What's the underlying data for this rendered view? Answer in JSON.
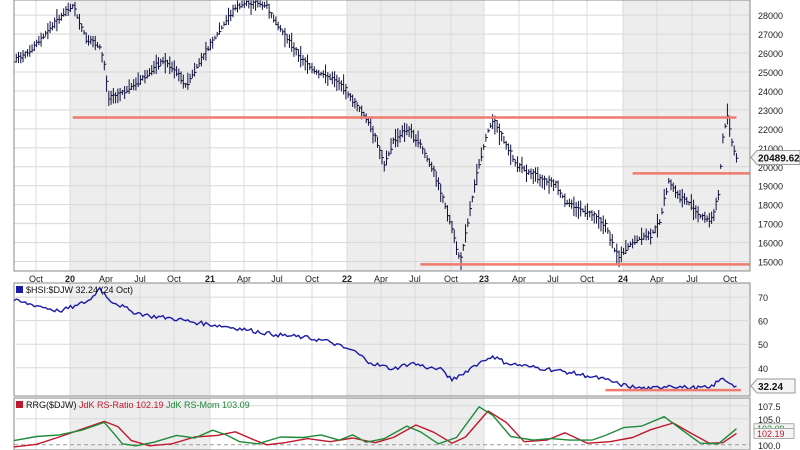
{
  "chart_data": [
    {
      "type": "ohlc",
      "title": "",
      "x_tick_labels": [
        "Oct",
        "20",
        "Apr",
        "Jul",
        "Oct",
        "21",
        "Apr",
        "Jul",
        "Oct",
        "22",
        "Apr",
        "Jul",
        "Oct",
        "23",
        "Apr",
        "Jul",
        "Oct",
        "24",
        "Apr",
        "Jul",
        "Oct"
      ],
      "year_labels": [
        "20",
        "21",
        "22",
        "23",
        "24"
      ],
      "y_tick_labels": [
        "28000",
        "27000",
        "26000",
        "25000",
        "24000",
        "23000",
        "22000",
        "21000",
        "20000",
        "19000",
        "18000",
        "17000",
        "16000",
        "15000"
      ],
      "ylim": [
        14500,
        28800
      ],
      "last_value_label": "20489.62",
      "close_path": [
        [
          0,
          25600
        ],
        [
          4,
          26200
        ],
        [
          9,
          27600
        ],
        [
          13,
          28500
        ],
        [
          16,
          26800
        ],
        [
          19,
          26300
        ],
        [
          20,
          25300
        ],
        [
          21,
          23600
        ],
        [
          23,
          23800
        ],
        [
          26,
          24200
        ],
        [
          29,
          24800
        ],
        [
          33,
          25600
        ],
        [
          36,
          25000
        ],
        [
          38,
          24300
        ],
        [
          41,
          25500
        ],
        [
          45,
          27000
        ],
        [
          49,
          28400
        ],
        [
          52,
          28700
        ],
        [
          56,
          28500
        ],
        [
          58,
          27600
        ],
        [
          61,
          26600
        ],
        [
          64,
          25600
        ],
        [
          67,
          25000
        ],
        [
          70,
          24700
        ],
        [
          73,
          24200
        ],
        [
          75,
          23500
        ],
        [
          78,
          22600
        ],
        [
          80,
          21600
        ],
        [
          82,
          20000
        ],
        [
          84,
          21400
        ],
        [
          87,
          22000
        ],
        [
          90,
          21200
        ],
        [
          93,
          19700
        ],
        [
          95,
          18300
        ],
        [
          97,
          16800
        ],
        [
          98,
          15600
        ],
        [
          99,
          15100
        ],
        [
          101,
          17700
        ],
        [
          103,
          20200
        ],
        [
          105,
          21900
        ],
        [
          106,
          22500
        ],
        [
          108,
          21600
        ],
        [
          111,
          20200
        ],
        [
          114,
          19700
        ],
        [
          117,
          19300
        ],
        [
          120,
          19100
        ],
        [
          122,
          18200
        ],
        [
          125,
          17800
        ],
        [
          128,
          17500
        ],
        [
          131,
          16900
        ],
        [
          132,
          16300
        ],
        [
          133,
          15600
        ],
        [
          134,
          15200
        ],
        [
          136,
          15800
        ],
        [
          139,
          16300
        ],
        [
          141,
          16400
        ],
        [
          143,
          17100
        ],
        [
          145,
          19300
        ],
        [
          147,
          18500
        ],
        [
          150,
          18000
        ],
        [
          152,
          17400
        ],
        [
          154,
          17200
        ],
        [
          155,
          17500
        ],
        [
          156,
          18500
        ],
        [
          157,
          21500
        ],
        [
          158,
          22800
        ],
        [
          159,
          21300
        ],
        [
          160,
          20490
        ]
      ],
      "hlines": [
        {
          "y": 22600,
          "x_from": 13,
          "x_to": 160,
          "label": ""
        },
        {
          "y": 19650,
          "x_from": 137,
          "x_to": 163,
          "label": ""
        },
        {
          "y": 14850,
          "x_from": 90,
          "x_to": 163,
          "label": ""
        }
      ]
    },
    {
      "type": "line",
      "legend_label": "$HSI:$DJW 32.24 (24 Oct)",
      "y_tick_labels": [
        "70",
        "60",
        "50",
        "40"
      ],
      "ylim": [
        28,
        76
      ],
      "last_value_label": "32.24",
      "series": [
        {
          "name": "$HSI:$DJW",
          "values": [
            [
              0,
              68.5
            ],
            [
              6,
              66
            ],
            [
              10,
              64
            ],
            [
              14,
              66.5
            ],
            [
              17,
              69
            ],
            [
              19,
              74
            ],
            [
              21,
              69
            ],
            [
              26,
              64
            ],
            [
              30,
              62
            ],
            [
              35,
              61
            ],
            [
              41,
              59
            ],
            [
              47,
              57.5
            ],
            [
              52,
              56
            ],
            [
              58,
              54
            ],
            [
              64,
              53
            ],
            [
              70,
              51
            ],
            [
              73,
              48.5
            ],
            [
              75,
              47.5
            ],
            [
              79,
              42
            ],
            [
              84,
              39.5
            ],
            [
              88,
              42
            ],
            [
              92,
              40
            ],
            [
              95,
              39
            ],
            [
              97,
              34.5
            ],
            [
              99,
              37
            ],
            [
              102,
              41
            ],
            [
              104,
              43
            ],
            [
              106,
              45
            ],
            [
              109,
              42
            ],
            [
              114,
              40.5
            ],
            [
              118,
              39.5
            ],
            [
              123,
              38
            ],
            [
              127,
              36.5
            ],
            [
              131,
              35
            ],
            [
              134,
              33
            ],
            [
              138,
              31.5
            ],
            [
              141,
              31
            ],
            [
              145,
              32.5
            ],
            [
              149,
              31.5
            ],
            [
              154,
              31.5
            ],
            [
              157,
              35.5
            ],
            [
              159,
              33
            ],
            [
              160,
              32.24
            ]
          ]
        }
      ],
      "hlines": [
        {
          "y": 30.5,
          "x_from": 131,
          "x_to": 161,
          "label": ""
        }
      ]
    },
    {
      "type": "line",
      "legend_label": "RRG($DJW) JdK RS-Ratio 102.19 JdK RS-Mom 103.09",
      "legend_prefix": "RRG($DJW)",
      "legend_ratio": "JdK RS-Ratio 102.19",
      "legend_mom": "JdK RS-Mom 103.09",
      "y_tick_labels": [
        "107.5",
        "105.0",
        "103.09",
        "102.19",
        "100.0"
      ],
      "ylim": [
        99,
        109
      ],
      "series": [
        {
          "name": "JdK RS-Ratio",
          "color": "#c0182c",
          "values": [
            [
              0,
              99.6
            ],
            [
              5,
              100.1
            ],
            [
              10,
              101.5
            ],
            [
              15,
              103
            ],
            [
              20,
              104.5
            ],
            [
              23,
              103.5
            ],
            [
              26,
              100.8
            ],
            [
              30,
              99.8
            ],
            [
              35,
              100.2
            ],
            [
              40,
              101.5
            ],
            [
              45,
              101.8
            ],
            [
              49,
              102.5
            ],
            [
              53,
              101
            ],
            [
              56,
              100
            ],
            [
              60,
              100.4
            ],
            [
              65,
              101.2
            ],
            [
              70,
              100.6
            ],
            [
              75,
              101.3
            ],
            [
              80,
              100.4
            ],
            [
              84,
              101.4
            ],
            [
              89,
              103.8
            ],
            [
              93,
              102.4
            ],
            [
              97,
              100.3
            ],
            [
              100,
              101.5
            ],
            [
              105,
              106.5
            ],
            [
              109,
              104.3
            ],
            [
              113,
              100.6
            ],
            [
              118,
              100.9
            ],
            [
              122,
              102.3
            ],
            [
              127,
              100.3
            ],
            [
              132,
              100.6
            ],
            [
              137,
              101.4
            ],
            [
              141,
              102.9
            ],
            [
              146,
              104.2
            ],
            [
              150,
              102.2
            ],
            [
              154,
              100.3
            ],
            [
              157,
              100.4
            ],
            [
              160,
              102.19
            ]
          ]
        },
        {
          "name": "JdK RS-Mom",
          "color": "#1f8a3a",
          "values": [
            [
              0,
              100.8
            ],
            [
              5,
              101.6
            ],
            [
              10,
              101.9
            ],
            [
              15,
              102.8
            ],
            [
              20,
              104.3
            ],
            [
              22,
              102.3
            ],
            [
              24,
              100.2
            ],
            [
              27,
              99.8
            ],
            [
              31,
              100.5
            ],
            [
              36,
              101.8
            ],
            [
              40,
              101.3
            ],
            [
              44,
              102.8
            ],
            [
              47,
              101.9
            ],
            [
              50,
              100.6
            ],
            [
              54,
              100.2
            ],
            [
              59,
              101.5
            ],
            [
              64,
              101.4
            ],
            [
              68,
              101.9
            ],
            [
              72,
              100.9
            ],
            [
              75,
              101.9
            ],
            [
              78,
              100.5
            ],
            [
              82,
              101.2
            ],
            [
              87,
              103.6
            ],
            [
              90,
              102.5
            ],
            [
              94,
              100.2
            ],
            [
              98,
              101.4
            ],
            [
              103,
              107.3
            ],
            [
              106,
              105.7
            ],
            [
              110,
              101.6
            ],
            [
              115,
              100.9
            ],
            [
              119,
              101.2
            ],
            [
              123,
              100.9
            ],
            [
              128,
              100.9
            ],
            [
              131,
              101.8
            ],
            [
              135,
              103.3
            ],
            [
              139,
              103.6
            ],
            [
              144,
              105.4
            ],
            [
              148,
              102.8
            ],
            [
              152,
              100.3
            ],
            [
              156,
              100.2
            ],
            [
              160,
              103.09
            ]
          ]
        }
      ]
    }
  ]
}
